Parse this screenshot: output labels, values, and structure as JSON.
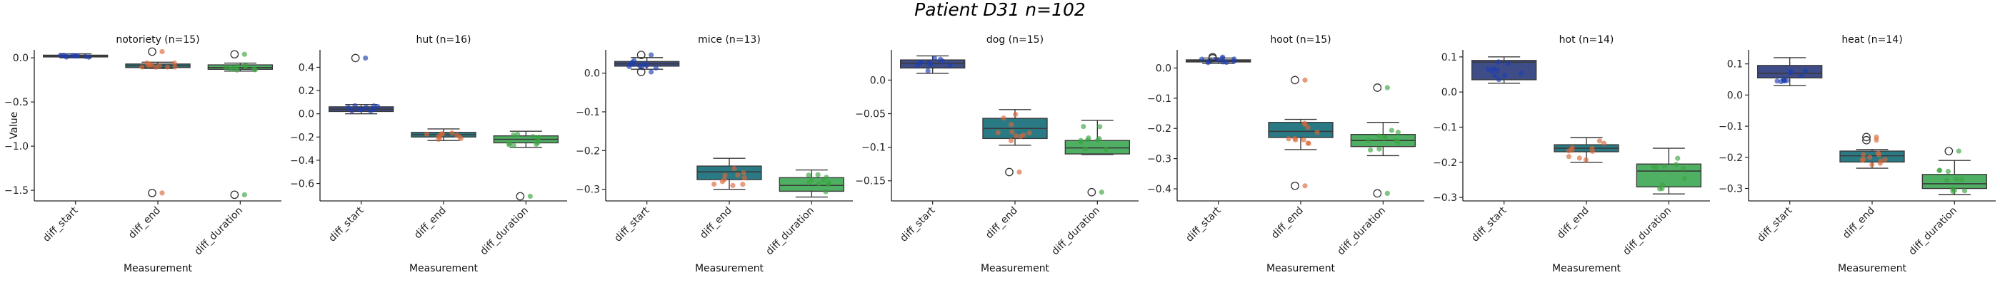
{
  "figure": {
    "title": "Patient D31 n=102"
  },
  "chart_data": [
    {
      "type": "box",
      "title": "notoriety (n=15)",
      "ylabel": "Value",
      "xlabel": "Measurement",
      "categories": [
        "diff_start",
        "diff_end",
        "diff_duration"
      ],
      "ylim": [
        -1.62,
        0.09
      ],
      "yticks": [
        0.0,
        -0.5,
        -1.0,
        -1.5
      ],
      "boxes": [
        {
          "q1": 0.01,
          "median": 0.02,
          "q3": 0.03,
          "whisker_low": 0.0,
          "whisker_high": 0.045,
          "outliers": []
        },
        {
          "q1": -0.11,
          "median": -0.09,
          "q3": -0.07,
          "whisker_low": -0.12,
          "whisker_high": -0.05,
          "outliers": [
            0.07,
            -1.53
          ]
        },
        {
          "q1": -0.13,
          "median": -0.11,
          "q3": -0.08,
          "whisker_low": -0.15,
          "whisker_high": -0.06,
          "outliers": [
            0.04,
            -1.55
          ]
        }
      ]
    },
    {
      "type": "box",
      "title": "hut (n=16)",
      "ylabel": "",
      "xlabel": "Measurement",
      "categories": [
        "diff_start",
        "diff_end",
        "diff_duration"
      ],
      "ylim": [
        -0.75,
        0.55
      ],
      "yticks": [
        0.4,
        0.2,
        0.0,
        -0.2,
        -0.4,
        -0.6
      ],
      "boxes": [
        {
          "q1": 0.02,
          "median": 0.04,
          "q3": 0.06,
          "whisker_low": 0.0,
          "whisker_high": 0.08,
          "outliers": [
            0.48
          ]
        },
        {
          "q1": -0.2,
          "median": -0.18,
          "q3": -0.16,
          "whisker_low": -0.23,
          "whisker_high": -0.13,
          "outliers": []
        },
        {
          "q1": -0.25,
          "median": -0.22,
          "q3": -0.19,
          "whisker_low": -0.29,
          "whisker_high": -0.15,
          "outliers": [
            -0.71
          ]
        }
      ]
    },
    {
      "type": "box",
      "title": "mice (n=13)",
      "ylabel": "",
      "xlabel": "Measurement",
      "categories": [
        "diff_start",
        "diff_end",
        "diff_duration"
      ],
      "ylim": [
        -0.33,
        0.06
      ],
      "yticks": [
        0.0,
        -0.1,
        -0.2,
        -0.3
      ],
      "boxes": [
        {
          "q1": 0.018,
          "median": 0.024,
          "q3": 0.03,
          "whisker_low": 0.01,
          "whisker_high": 0.04,
          "outliers": [
            0.047,
            0.003
          ]
        },
        {
          "q1": -0.275,
          "median": -0.255,
          "q3": -0.24,
          "whisker_low": -0.3,
          "whisker_high": -0.22,
          "outliers": []
        },
        {
          "q1": -0.305,
          "median": -0.29,
          "q3": -0.27,
          "whisker_low": -0.32,
          "whisker_high": -0.25,
          "outliers": []
        }
      ]
    },
    {
      "type": "box",
      "title": "dog (n=15)",
      "ylabel": "",
      "xlabel": "Measurement",
      "categories": [
        "diff_start",
        "diff_end",
        "diff_duration"
      ],
      "ylim": [
        -0.18,
        0.045
      ],
      "yticks": [
        0.0,
        -0.05,
        -0.1,
        -0.15
      ],
      "boxes": [
        {
          "q1": 0.018,
          "median": 0.025,
          "q3": 0.03,
          "whisker_low": 0.01,
          "whisker_high": 0.036,
          "outliers": []
        },
        {
          "q1": -0.087,
          "median": -0.072,
          "q3": -0.057,
          "whisker_low": -0.097,
          "whisker_high": -0.044,
          "outliers": [
            -0.137
          ]
        },
        {
          "q1": -0.11,
          "median": -0.101,
          "q3": -0.09,
          "whisker_low": -0.111,
          "whisker_high": -0.06,
          "outliers": [
            -0.167
          ]
        }
      ]
    },
    {
      "type": "box",
      "title": "hoot (n=15)",
      "ylabel": "",
      "xlabel": "Measurement",
      "categories": [
        "diff_start",
        "diff_end",
        "diff_duration"
      ],
      "ylim": [
        -0.44,
        0.06
      ],
      "yticks": [
        0.0,
        -0.1,
        -0.2,
        -0.3,
        -0.4
      ],
      "boxes": [
        {
          "q1": 0.02,
          "median": 0.023,
          "q3": 0.027,
          "whisker_low": 0.015,
          "whisker_high": 0.033,
          "outliers": [
            0.036,
            0.032
          ]
        },
        {
          "q1": -0.23,
          "median": -0.21,
          "q3": -0.18,
          "whisker_low": -0.27,
          "whisker_high": -0.17,
          "outliers": [
            -0.04,
            -0.39
          ]
        },
        {
          "q1": -0.26,
          "median": -0.24,
          "q3": -0.22,
          "whisker_low": -0.29,
          "whisker_high": -0.18,
          "outliers": [
            -0.065,
            -0.415
          ]
        }
      ]
    },
    {
      "type": "box",
      "title": "hot (n=14)",
      "ylabel": "",
      "xlabel": "Measurement",
      "categories": [
        "diff_start",
        "diff_end",
        "diff_duration"
      ],
      "ylim": [
        -0.31,
        0.12
      ],
      "yticks": [
        0.1,
        0.0,
        -0.1,
        -0.2,
        -0.3
      ],
      "boxes": [
        {
          "q1": 0.035,
          "median": 0.085,
          "q3": 0.09,
          "whisker_low": 0.025,
          "whisker_high": 0.1,
          "outliers": []
        },
        {
          "q1": -0.17,
          "median": -0.16,
          "q3": -0.15,
          "whisker_low": -0.2,
          "whisker_high": -0.13,
          "outliers": []
        },
        {
          "q1": -0.27,
          "median": -0.225,
          "q3": -0.205,
          "whisker_low": -0.29,
          "whisker_high": -0.16,
          "outliers": []
        }
      ]
    },
    {
      "type": "box",
      "title": "heat (n=14)",
      "ylabel": "",
      "xlabel": "Measurement",
      "categories": [
        "diff_start",
        "diff_end",
        "diff_duration"
      ],
      "ylim": [
        -0.34,
        0.145
      ],
      "yticks": [
        0.1,
        0.0,
        -0.1,
        -0.2,
        -0.3
      ],
      "boxes": [
        {
          "q1": 0.055,
          "median": 0.07,
          "q3": 0.095,
          "whisker_low": 0.03,
          "whisker_high": 0.12,
          "outliers": []
        },
        {
          "q1": -0.215,
          "median": -0.195,
          "q3": -0.18,
          "whisker_low": -0.235,
          "whisker_high": -0.175,
          "outliers": [
            -0.135,
            -0.145
          ]
        },
        {
          "q1": -0.3,
          "median": -0.285,
          "q3": -0.255,
          "whisker_low": -0.32,
          "whisker_high": -0.21,
          "outliers": [
            -0.18
          ]
        }
      ]
    }
  ],
  "colors": {
    "box": [
      "#3e4c88",
      "#2a7a85",
      "#4fb063"
    ],
    "points": [
      "#1f3fb0",
      "#d9693a",
      "#3aa540"
    ]
  }
}
